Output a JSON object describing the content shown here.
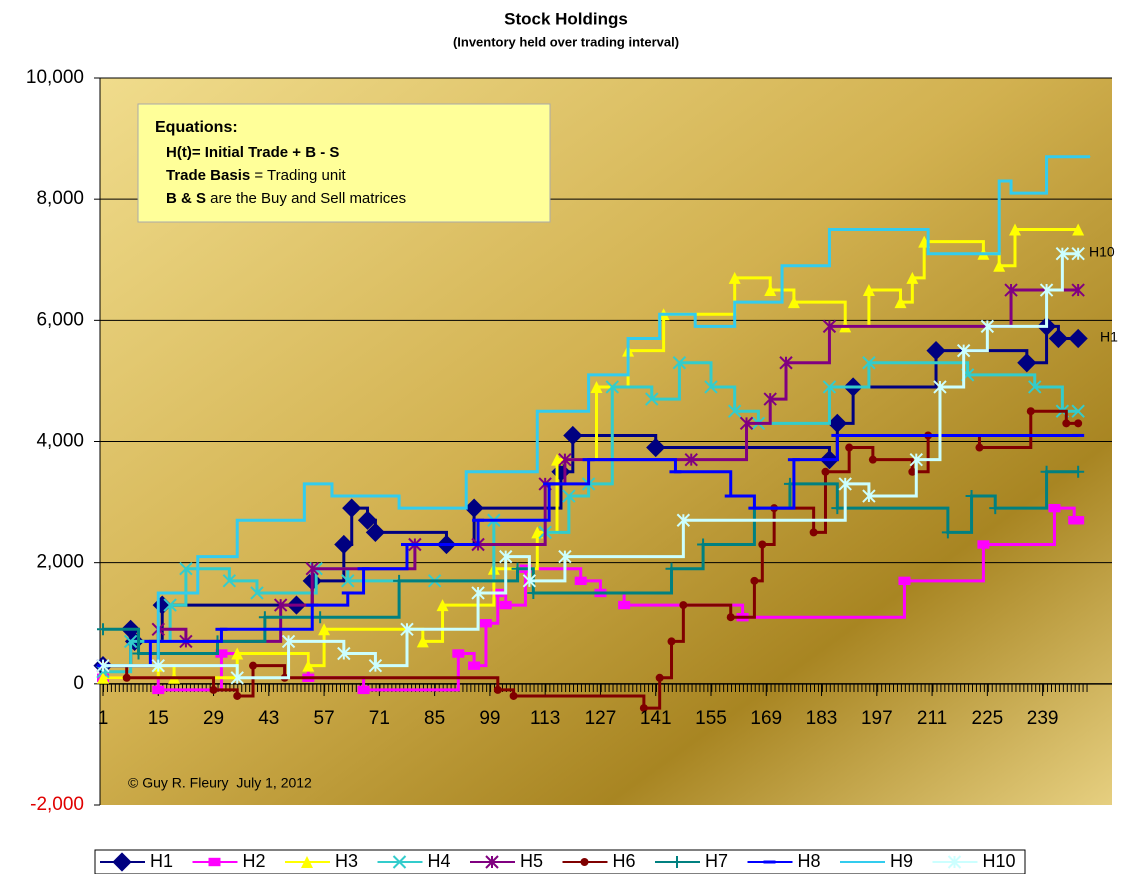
{
  "chart_data": {
    "type": "step-line",
    "title": "Stock Holdings",
    "subtitle": "(Inventory held over trading interval)",
    "equations": {
      "title": "Equations:",
      "lines": [
        [
          "H(t)= Initial Trade + B - S"
        ],
        [
          "Trade Basis",
          " = Trading unit"
        ],
        [
          "B & S",
          " are the Buy and Sell matrices"
        ]
      ]
    },
    "annotations": [
      "H10",
      "H1",
      "© Guy R. Fleury  July 1, 2012"
    ],
    "xlim": [
      1,
      251
    ],
    "xticks": [
      1,
      15,
      29,
      43,
      57,
      71,
      85,
      99,
      113,
      127,
      141,
      155,
      169,
      183,
      197,
      211,
      225,
      239
    ],
    "ylim": [
      -2000,
      10000
    ],
    "yticks": [
      {
        "value": -2000,
        "label": "-2,000"
      },
      0,
      {
        "value": 2000,
        "label": "2,000"
      },
      {
        "value": 4000,
        "label": "4,000"
      },
      {
        "value": 6000,
        "label": "6,000"
      },
      {
        "value": 8000,
        "label": "8,000"
      },
      {
        "value": 10000,
        "label": "10,000"
      }
    ],
    "grid": true,
    "legend": "bottom",
    "series": [
      {
        "name": "H1",
        "color": "#000080",
        "marker": "diamond",
        "x": [
          1,
          8,
          9,
          16,
          50,
          54,
          62,
          64,
          68,
          70,
          88,
          95,
          117,
          120,
          141,
          185,
          187,
          191,
          212,
          235,
          240,
          243,
          248
        ],
        "values": [
          300,
          900,
          700,
          1300,
          1300,
          1700,
          2300,
          2900,
          2700,
          2500,
          2300,
          2900,
          3500,
          4100,
          3900,
          3700,
          4300,
          4900,
          5500,
          5300,
          5900,
          5700,
          5700
        ]
      },
      {
        "name": "H2",
        "color": "#ff00ff",
        "marker": "square",
        "x": [
          1,
          15,
          31,
          53,
          67,
          91,
          95,
          98,
          101,
          103,
          108,
          122,
          127,
          133,
          163,
          204,
          224,
          242,
          247,
          248
        ],
        "values": [
          100,
          -100,
          500,
          100,
          -100,
          500,
          300,
          1000,
          1500,
          1300,
          1900,
          1700,
          1500,
          1300,
          1100,
          1700,
          2300,
          2900,
          2700,
          2700
        ]
      },
      {
        "name": "H3",
        "color": "#ffff00",
        "marker": "triangle",
        "x": [
          1,
          15,
          19,
          35,
          53,
          57,
          82,
          87,
          100,
          111,
          116,
          126,
          134,
          143,
          161,
          170,
          176,
          189,
          195,
          203,
          206,
          209,
          224,
          228,
          232,
          248
        ],
        "values": [
          100,
          300,
          100,
          500,
          300,
          900,
          700,
          1300,
          1900,
          2500,
          3700,
          4900,
          5500,
          6100,
          6700,
          6500,
          6300,
          5900,
          6500,
          6300,
          6700,
          7300,
          7100,
          6900,
          7500,
          7500
        ]
      },
      {
        "name": "H4",
        "color": "#33cccc",
        "marker": "x",
        "x": [
          1,
          8,
          18,
          22,
          33,
          40,
          55,
          63,
          85,
          100,
          113,
          119,
          124,
          130,
          140,
          147,
          155,
          161,
          167,
          185,
          195,
          220,
          237,
          244,
          248
        ],
        "values": [
          200,
          700,
          1300,
          1900,
          1700,
          1500,
          1900,
          1700,
          1700,
          2700,
          2500,
          3100,
          3300,
          4900,
          4700,
          5300,
          4900,
          4500,
          4300,
          4900,
          5300,
          5100,
          4900,
          4500,
          4500
        ]
      },
      {
        "name": "H5",
        "color": "#800080",
        "marker": "star",
        "x": [
          1,
          15,
          22,
          46,
          54,
          80,
          96,
          113,
          118,
          150,
          164,
          170,
          174,
          185,
          231,
          248
        ],
        "values": [
          300,
          900,
          700,
          1300,
          1900,
          2300,
          2300,
          3300,
          3700,
          3700,
          4300,
          4700,
          5300,
          5900,
          6500,
          6500
        ]
      },
      {
        "name": "H6",
        "color": "#800000",
        "marker": "circle",
        "x": [
          1,
          7,
          29,
          35,
          39,
          47,
          101,
          105,
          138,
          142,
          145,
          148,
          160,
          166,
          168,
          171,
          181,
          184,
          190,
          196,
          206,
          210,
          223,
          236,
          245,
          248
        ],
        "values": [
          300,
          100,
          -100,
          -200,
          300,
          100,
          -100,
          -200,
          -400,
          100,
          700,
          1300,
          1100,
          1700,
          2300,
          2900,
          2500,
          3500,
          3900,
          3700,
          3500,
          4100,
          3900,
          4500,
          4300,
          4300
        ]
      },
      {
        "name": "H7",
        "color": "#008080",
        "marker": "plus",
        "x": [
          1,
          10,
          30,
          42,
          56,
          76,
          106,
          110,
          145,
          153,
          166,
          175,
          187,
          215,
          221,
          227,
          240,
          248
        ],
        "values": [
          900,
          500,
          700,
          1100,
          1100,
          1700,
          1900,
          1500,
          1900,
          2300,
          2900,
          3300,
          2900,
          2500,
          3100,
          2900,
          3500,
          3500
        ]
      },
      {
        "name": "H8",
        "color": "#0000ff",
        "marker": "dash",
        "x": [
          1,
          13,
          31,
          54,
          63,
          67,
          78,
          87,
          96,
          114,
          124,
          146,
          160,
          166,
          176,
          187,
          248
        ],
        "values": [
          300,
          700,
          900,
          1300,
          1500,
          1900,
          2300,
          2300,
          2700,
          3300,
          3700,
          3500,
          3100,
          2900,
          3700,
          4100,
          4100
        ]
      },
      {
        "name": "H9",
        "color": "#33ccee",
        "marker": "none",
        "x": [
          1,
          15,
          25,
          35,
          52,
          59,
          76,
          93,
          111,
          124,
          134,
          142,
          151,
          161,
          173,
          185,
          210,
          228,
          231,
          240,
          251
        ],
        "values": [
          300,
          1500,
          2100,
          2700,
          3300,
          3100,
          2900,
          3500,
          4500,
          5100,
          5700,
          6100,
          5900,
          6300,
          6900,
          7500,
          7100,
          8300,
          8100,
          8700,
          8700
        ]
      },
      {
        "name": "H10",
        "color": "#ccffff",
        "marker": "star",
        "x": [
          1,
          15,
          35,
          48,
          62,
          70,
          78,
          96,
          103,
          109,
          118,
          148,
          189,
          195,
          207,
          213,
          219,
          225,
          240,
          244,
          248
        ],
        "values": [
          300,
          300,
          100,
          700,
          500,
          300,
          900,
          1500,
          2100,
          1700,
          2100,
          2700,
          3300,
          3100,
          3700,
          4900,
          5500,
          5900,
          6500,
          7100,
          7100
        ]
      }
    ]
  }
}
